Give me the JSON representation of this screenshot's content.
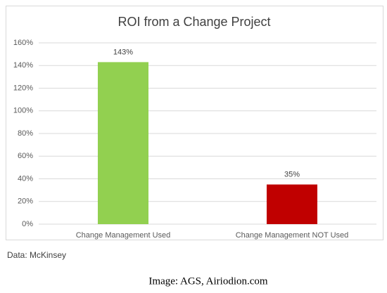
{
  "chart_data": {
    "type": "bar",
    "title": "ROI from a Change Project",
    "categories": [
      "Change Management Used",
      "Change Management NOT Used"
    ],
    "values": [
      143,
      35
    ],
    "value_labels": [
      "143%",
      "35%"
    ],
    "colors": [
      "#92d050",
      "#c00000"
    ],
    "ylim": [
      0,
      160
    ],
    "yticks": [
      {
        "value": 0,
        "label": "0%"
      },
      {
        "value": 20,
        "label": "20%"
      },
      {
        "value": 40,
        "label": "40%"
      },
      {
        "value": 60,
        "label": "60%"
      },
      {
        "value": 80,
        "label": "80%"
      },
      {
        "value": 100,
        "label": "100%"
      },
      {
        "value": 120,
        "label": "120%"
      },
      {
        "value": 140,
        "label": "140%"
      },
      {
        "value": 160,
        "label": "160%"
      }
    ],
    "grid": true,
    "source": "Data: McKinsey",
    "credit": "Image: AGS, Airiodion.com"
  }
}
